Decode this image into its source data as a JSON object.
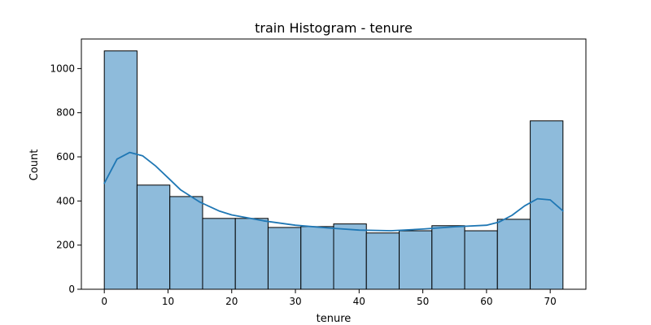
{
  "chart_data": {
    "type": "bar",
    "title": "train Histogram - tenure",
    "xlabel": "tenure",
    "ylabel": "Count",
    "xlim": [
      -3.6,
      75.6
    ],
    "ylim": [
      0,
      1134
    ],
    "x_ticks": [
      0,
      10,
      20,
      30,
      40,
      50,
      60,
      70
    ],
    "y_ticks": [
      0,
      200,
      400,
      600,
      800,
      1000
    ],
    "bins": [
      {
        "x0": 0.0,
        "x1": 5.14,
        "count": 1080
      },
      {
        "x0": 5.14,
        "x1": 10.29,
        "count": 472
      },
      {
        "x0": 10.29,
        "x1": 15.43,
        "count": 420
      },
      {
        "x0": 15.43,
        "x1": 20.57,
        "count": 321
      },
      {
        "x0": 20.57,
        "x1": 25.71,
        "count": 321
      },
      {
        "x0": 25.71,
        "x1": 30.86,
        "count": 280
      },
      {
        "x0": 30.86,
        "x1": 36.0,
        "count": 284
      },
      {
        "x0": 36.0,
        "x1": 41.14,
        "count": 296
      },
      {
        "x0": 41.14,
        "x1": 46.29,
        "count": 255
      },
      {
        "x0": 46.29,
        "x1": 51.43,
        "count": 265
      },
      {
        "x0": 51.43,
        "x1": 56.57,
        "count": 288
      },
      {
        "x0": 56.57,
        "x1": 61.71,
        "count": 265
      },
      {
        "x0": 61.71,
        "x1": 66.86,
        "count": 317
      },
      {
        "x0": 66.86,
        "x1": 72.0,
        "count": 763
      }
    ],
    "kde": {
      "x": [
        0,
        2,
        4,
        6,
        8,
        10,
        12,
        15,
        18,
        20,
        25,
        30,
        35,
        40,
        45,
        50,
        55,
        60,
        62,
        64,
        66,
        68,
        70,
        72
      ],
      "y": [
        480,
        590,
        620,
        605,
        560,
        505,
        450,
        395,
        355,
        337,
        310,
        290,
        278,
        268,
        265,
        273,
        283,
        290,
        305,
        335,
        378,
        410,
        405,
        355
      ]
    },
    "colors": {
      "bar_fill": "#8ebbdb",
      "bar_edge": "#000000",
      "kde_line": "#1f77b4",
      "axis": "#000000"
    },
    "grid": false,
    "legend": "none"
  }
}
